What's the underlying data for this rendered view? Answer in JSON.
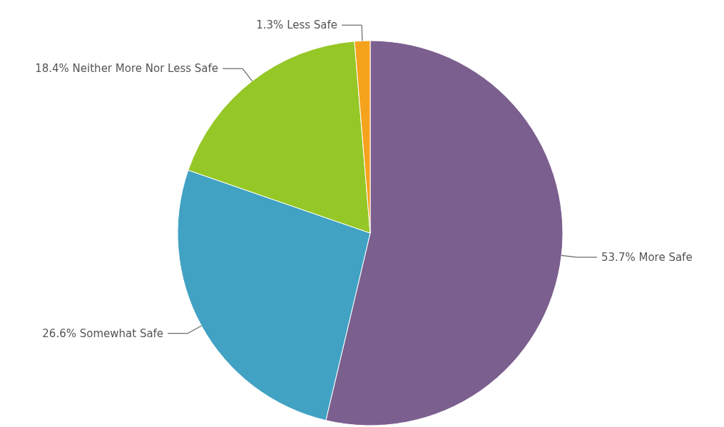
{
  "chart_data": {
    "type": "pie",
    "categories": [
      "More Safe",
      "Somewhat Safe",
      "Neither More Nor Less Safe",
      "Less Safe"
    ],
    "values": [
      53.7,
      26.6,
      18.4,
      1.3
    ],
    "value_labels": [
      "53.7%",
      "26.6%",
      "18.4%",
      "1.3%"
    ],
    "colors": [
      "#7b5f8e",
      "#41a2c3",
      "#95c726",
      "#f5a21d"
    ]
  }
}
